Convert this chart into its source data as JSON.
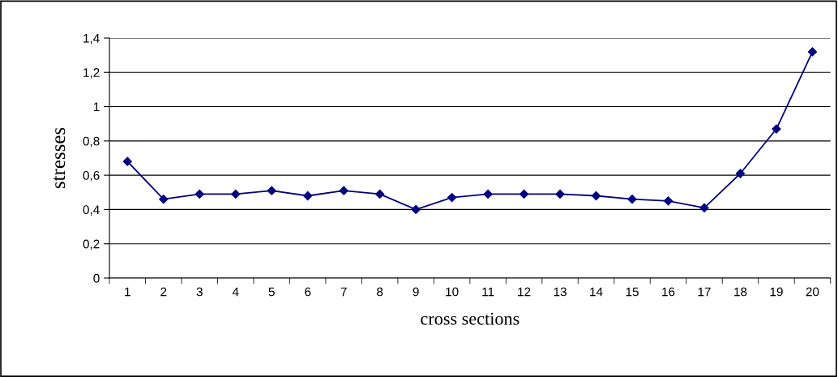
{
  "chart_data": {
    "type": "line",
    "xlabel": "cross sections",
    "ylabel": "stresses",
    "categories": [
      "1",
      "2",
      "3",
      "4",
      "5",
      "6",
      "7",
      "8",
      "9",
      "10",
      "11",
      "12",
      "13",
      "14",
      "15",
      "16",
      "17",
      "18",
      "19",
      "20"
    ],
    "series": [
      {
        "color": "#000080",
        "values": [
          0.68,
          0.46,
          0.49,
          0.49,
          0.51,
          0.48,
          0.51,
          0.49,
          0.4,
          0.47,
          0.49,
          0.49,
          0.49,
          0.48,
          0.46,
          0.45,
          0.41,
          0.61,
          0.87,
          1.32
        ]
      }
    ],
    "ylim": [
      0,
      1.4
    ],
    "yticks": [
      0,
      {
        "value": 0.2,
        "label": "0,2"
      },
      {
        "value": 0.4,
        "label": "0,4"
      },
      {
        "value": 0.6,
        "label": "0,6"
      },
      {
        "value": 0.8,
        "label": "0,8"
      },
      {
        "value": 1,
        "label": "1"
      },
      {
        "value": 1.2,
        "label": "1,2"
      },
      {
        "value": 1.4,
        "label": "1,4"
      }
    ],
    "grid": "y",
    "marker": "diamond",
    "line_style": "solid"
  }
}
